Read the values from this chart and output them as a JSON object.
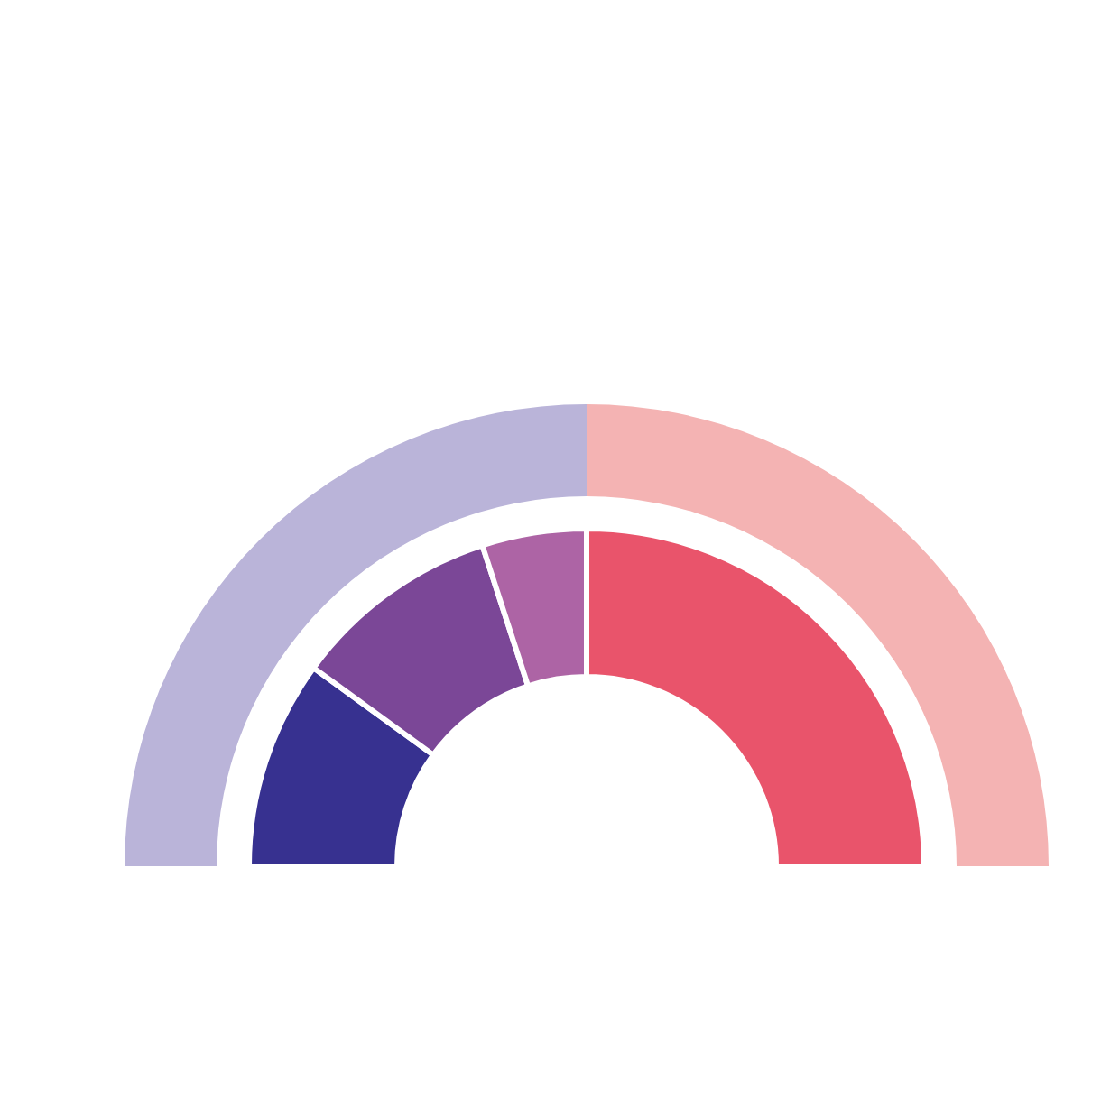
{
  "chart_data": {
    "type": "donut",
    "series": [
      {
        "values": [
          50,
          50
        ],
        "colors": [
          "#bab4d9",
          "#f4b3b3"
        ]
      },
      {
        "values": [
          20,
          20,
          10,
          50
        ],
        "colors": [
          "#373190",
          "#7b4797",
          "#ad64a5",
          "#e9546b"
        ]
      }
    ]
  }
}
